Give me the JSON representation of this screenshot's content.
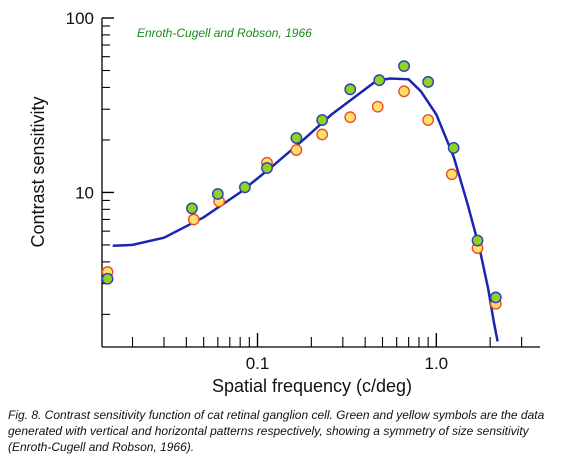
{
  "chart_data": {
    "type": "scatter",
    "title": "",
    "annotation": "Enroth-Cugell and Robson, 1966",
    "xlabel": "Spatial frequency (c/deg)",
    "ylabel": "Contrast sensitivity",
    "x_scale": "log",
    "y_scale": "log",
    "xlim": [
      0.0135,
      3.8
    ],
    "ylim": [
      1.3,
      100
    ],
    "x_tick_labels": [
      {
        "value": 0.1,
        "label": "0.1"
      },
      {
        "value": 1.0,
        "label": "1.0"
      }
    ],
    "y_tick_labels": [
      {
        "value": 10,
        "label": "10"
      },
      {
        "value": 100,
        "label": "100"
      }
    ],
    "series": [
      {
        "kind": "points",
        "color": "#8fd31c",
        "edge": "#2a3fbf",
        "points": [
          [
            0.0145,
            3.2
          ],
          [
            0.043,
            8.1
          ],
          [
            0.06,
            9.8
          ],
          [
            0.085,
            10.7
          ],
          [
            0.113,
            13.8
          ],
          [
            0.165,
            20.5
          ],
          [
            0.23,
            26.0
          ],
          [
            0.33,
            39.0
          ],
          [
            0.48,
            44.0
          ],
          [
            0.66,
            53.0
          ],
          [
            0.9,
            43.0
          ],
          [
            1.25,
            18.0
          ],
          [
            1.7,
            5.3
          ],
          [
            2.15,
            2.5
          ]
        ]
      },
      {
        "kind": "points",
        "color": "#ffe16a",
        "edge": "#e8502a",
        "points": [
          [
            0.0145,
            3.5
          ],
          [
            0.044,
            7.0
          ],
          [
            0.061,
            8.9
          ],
          [
            0.113,
            14.8
          ],
          [
            0.165,
            17.5
          ],
          [
            0.23,
            21.5
          ],
          [
            0.33,
            27.0
          ],
          [
            0.47,
            31.0
          ],
          [
            0.66,
            38.0
          ],
          [
            0.9,
            26.0
          ],
          [
            1.22,
            12.7
          ],
          [
            1.7,
            4.8
          ],
          [
            2.15,
            2.3
          ]
        ]
      },
      {
        "kind": "line",
        "color": "#1a25b0",
        "points": [
          [
            0.0155,
            4.95
          ],
          [
            0.02,
            5.0
          ],
          [
            0.03,
            5.5
          ],
          [
            0.05,
            7.2
          ],
          [
            0.08,
            10.0
          ],
          [
            0.12,
            14.0
          ],
          [
            0.18,
            20.0
          ],
          [
            0.26,
            28.0
          ],
          [
            0.36,
            36.0
          ],
          [
            0.46,
            43.5
          ],
          [
            0.55,
            45.0
          ],
          [
            0.7,
            44.5
          ],
          [
            0.82,
            38.0
          ],
          [
            1.0,
            28.0
          ],
          [
            1.25,
            16.0
          ],
          [
            1.5,
            8.5
          ],
          [
            1.75,
            4.7
          ],
          [
            1.95,
            2.8
          ],
          [
            2.1,
            1.8
          ],
          [
            2.2,
            1.4
          ]
        ]
      }
    ],
    "grid": false,
    "legend": "none"
  },
  "caption": "Fig. 8. Contrast sensitivity function of cat retinal ganglion cell.    Green and yellow symbols are the data generated with vertical and horizontal patterns respectively, showing a symmetry of size sensitivity (Enroth-Cugell and Robson, 1966)."
}
